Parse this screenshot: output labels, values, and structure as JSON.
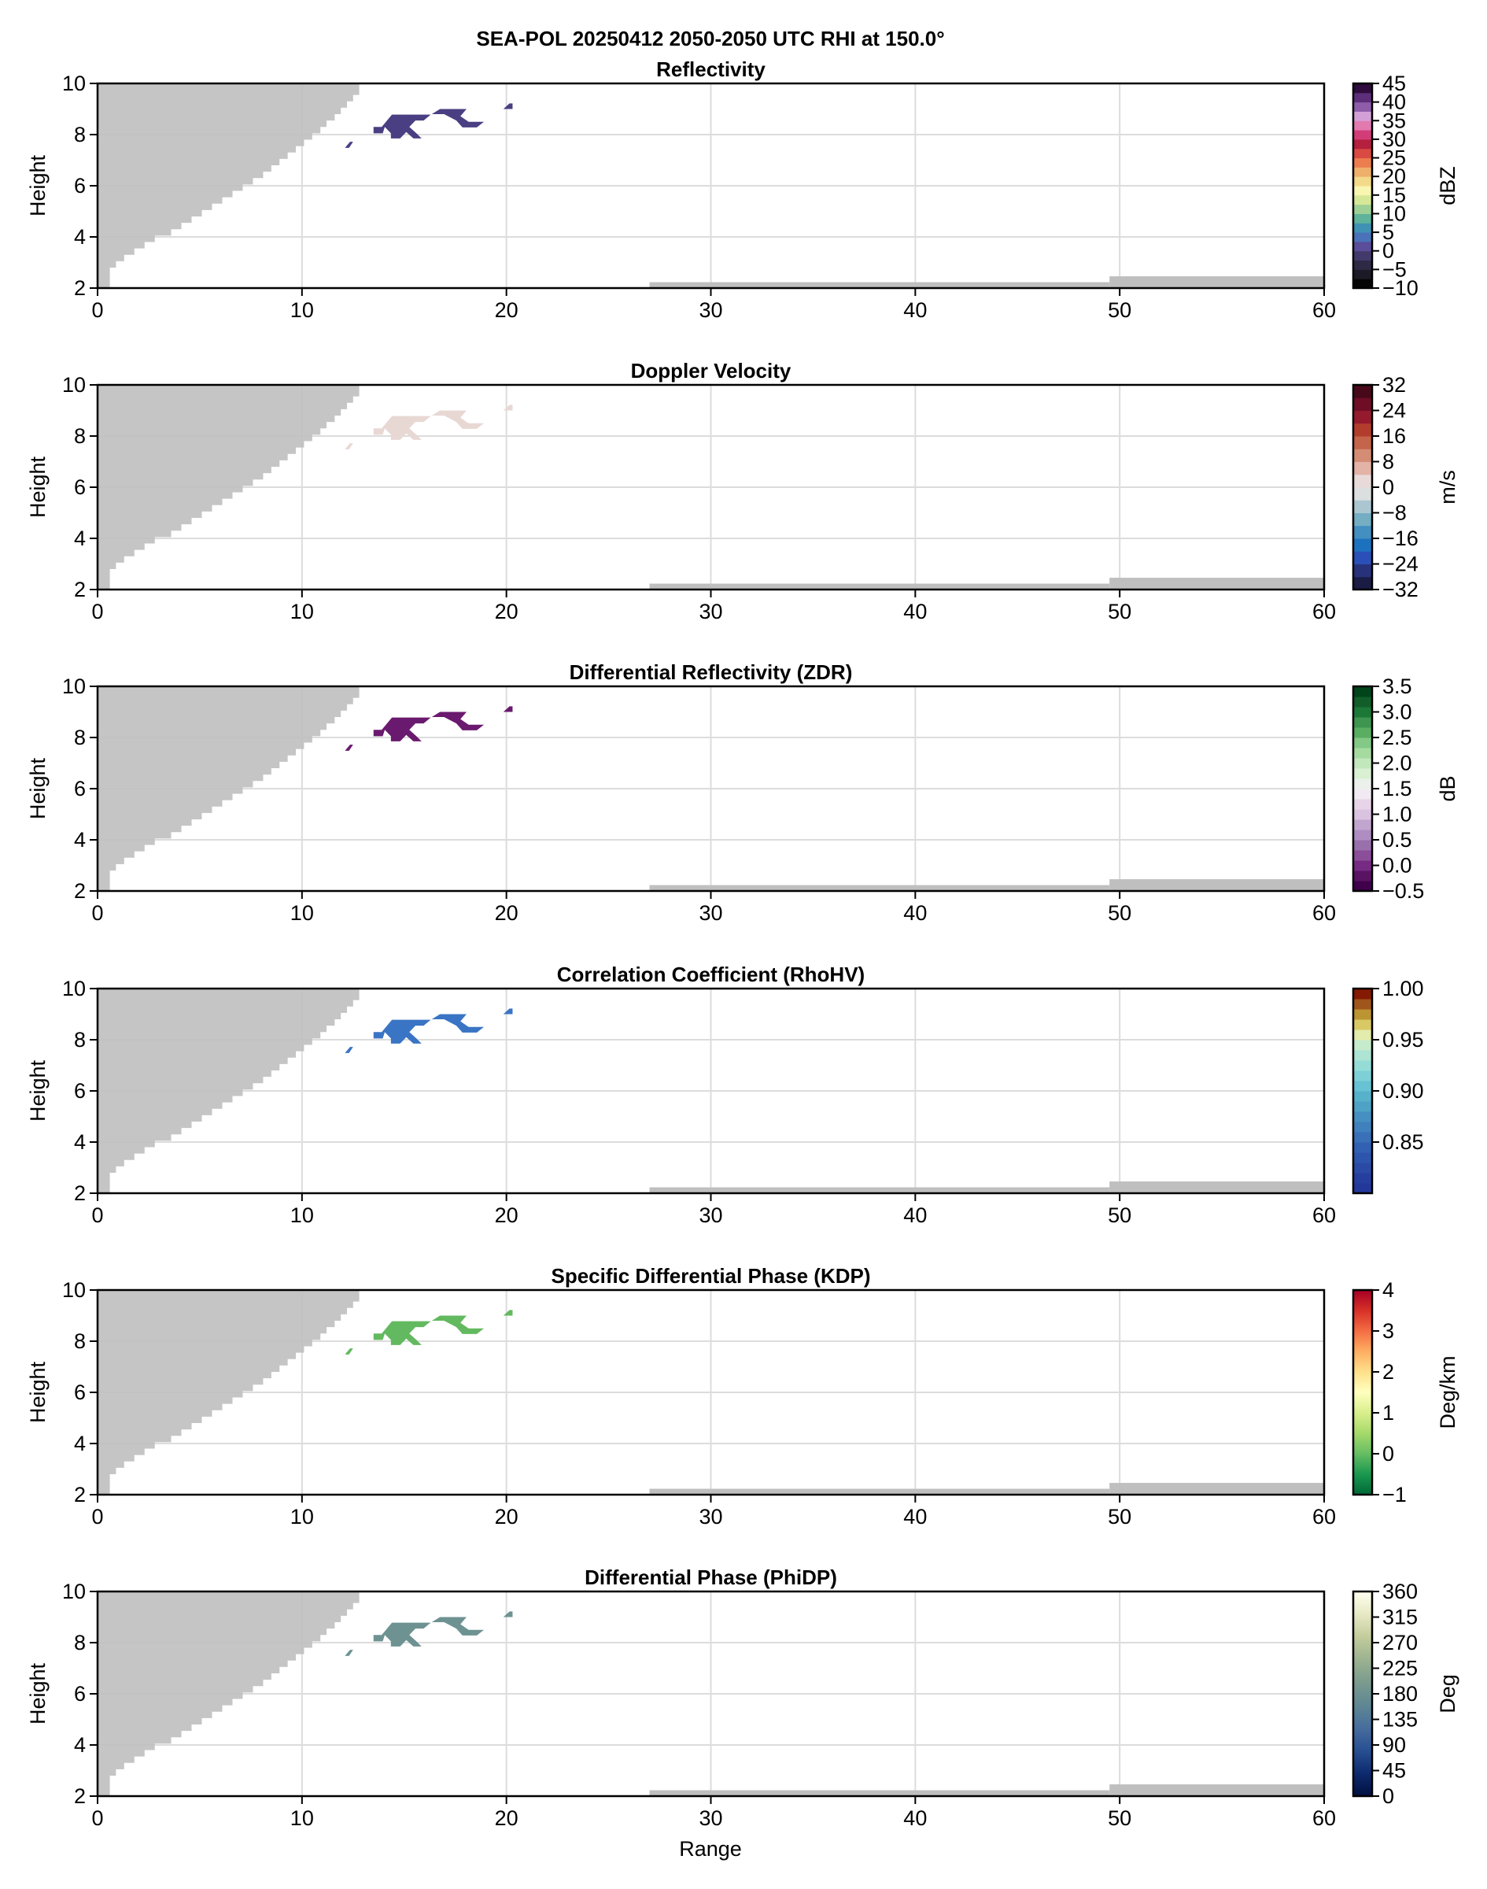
{
  "figure": {
    "suptitle": "SEA-POL 20250412 2050-2050 UTC RHI at 150.0°",
    "xlabel": "Range",
    "ylabel": "Height",
    "blocked_color": "#bfbfbf",
    "grid_color": "#dcdcdc"
  },
  "chart_data": [
    {
      "type": "heatmap",
      "title": "Reflectivity",
      "xlabel": "Range",
      "ylabel": "Height",
      "xlim": [
        0,
        60
      ],
      "ylim": [
        2,
        10
      ],
      "xticks": [
        "0",
        "10",
        "20",
        "30",
        "40",
        "50",
        "60"
      ],
      "yticks": [
        "2",
        "4",
        "6",
        "8",
        "10"
      ],
      "colorbar": {
        "label": "dBZ",
        "range": [
          -10,
          45
        ],
        "ticks": [
          "−10",
          "−5",
          "0",
          "5",
          "10",
          "15",
          "20",
          "25",
          "30",
          "35",
          "40",
          "45"
        ],
        "tick_values": [
          -10,
          -5,
          0,
          5,
          10,
          15,
          20,
          25,
          30,
          35,
          40,
          45
        ],
        "colors": [
          "#050505",
          "#1c1a26",
          "#2e2a45",
          "#433a6b",
          "#5a4d99",
          "#4a72b8",
          "#3f92b4",
          "#5fb39a",
          "#9ed095",
          "#d6e898",
          "#f8f6b0",
          "#f3d98a",
          "#eeb06a",
          "#ec7d4f",
          "#d94a42",
          "#b4203e",
          "#d23d78",
          "#e27ab0",
          "#d3a0d6",
          "#8e5ca8",
          "#5d2f7a",
          "#2f0c3d"
        ],
        "stepped": true
      },
      "echo_color": "#4a3f82",
      "echo_value_approx": 0
    },
    {
      "type": "heatmap",
      "title": "Doppler Velocity",
      "xlabel": "Range",
      "ylabel": "Height",
      "xlim": [
        0,
        60
      ],
      "ylim": [
        2,
        10
      ],
      "xticks": [
        "0",
        "10",
        "20",
        "30",
        "40",
        "50",
        "60"
      ],
      "yticks": [
        "2",
        "4",
        "6",
        "8",
        "10"
      ],
      "colorbar": {
        "label": "m/s",
        "range": [
          -32,
          32
        ],
        "ticks": [
          "−32",
          "−24",
          "−16",
          "−8",
          "0",
          "8",
          "16",
          "24",
          "32"
        ],
        "tick_values": [
          -32,
          -24,
          -16,
          -8,
          0,
          8,
          16,
          24,
          32
        ],
        "colors": [
          "#1b1c45",
          "#27327a",
          "#2a4fb8",
          "#1d72c0",
          "#428fc0",
          "#75aec3",
          "#abc6d0",
          "#dcdfe0",
          "#e8dad8",
          "#e2b3a6",
          "#d48c75",
          "#c4644a",
          "#b23d2c",
          "#951a2e",
          "#6f0d26",
          "#47091a"
        ],
        "stepped": true
      },
      "echo_color": "#e8d8d4",
      "echo_value_approx": 2
    },
    {
      "type": "heatmap",
      "title": "Differential Reflectivity (ZDR)",
      "xlabel": "Range",
      "ylabel": "Height",
      "xlim": [
        0,
        60
      ],
      "ylim": [
        2,
        10
      ],
      "xticks": [
        "0",
        "10",
        "20",
        "30",
        "40",
        "50",
        "60"
      ],
      "yticks": [
        "2",
        "4",
        "6",
        "8",
        "10"
      ],
      "colorbar": {
        "label": "dB",
        "range": [
          -0.5,
          3.5
        ],
        "ticks": [
          "−0.5",
          "0.0",
          "0.5",
          "1.0",
          "1.5",
          "2.0",
          "2.5",
          "3.0",
          "3.5"
        ],
        "tick_values": [
          -0.5,
          0,
          0.5,
          1.0,
          1.5,
          2.0,
          2.5,
          3.0,
          3.5
        ],
        "colors": [
          "#40004b",
          "#5a1263",
          "#762a83",
          "#8b4e99",
          "#9970ab",
          "#af8dc2",
          "#c2a5cf",
          "#dac3e0",
          "#e7d4e8",
          "#f1eaf2",
          "#ebf1ea",
          "#d9f0d3",
          "#c3e7bd",
          "#a6dba0",
          "#84c986",
          "#5aae61",
          "#3d9550",
          "#1b7837",
          "#115e2a",
          "#00441b"
        ],
        "stepped": true
      },
      "echo_color": "#6a1a6e",
      "echo_value_approx": -0.3
    },
    {
      "type": "heatmap",
      "title": "Correlation Coefficient (RhoHV)",
      "xlabel": "Range",
      "ylabel": "Height",
      "xlim": [
        0,
        60
      ],
      "ylim": [
        2,
        10
      ],
      "xticks": [
        "0",
        "10",
        "20",
        "30",
        "40",
        "50",
        "60"
      ],
      "yticks": [
        "2",
        "4",
        "6",
        "8",
        "10"
      ],
      "colorbar": {
        "label": "",
        "range": [
          0.8,
          1.0
        ],
        "ticks": [
          "0.85",
          "0.90",
          "0.95",
          "1.00"
        ],
        "tick_values": [
          0.85,
          0.9,
          0.95,
          1.0
        ],
        "colors": [
          "#23389a",
          "#263f9f",
          "#2a4aa6",
          "#2e55ad",
          "#3261b3",
          "#3970b8",
          "#3f80bd",
          "#4690c1",
          "#4ea2c6",
          "#56b2cb",
          "#67c2d3",
          "#7ed0d7",
          "#95dcd6",
          "#aee4d4",
          "#c6ebcc",
          "#e3ebad",
          "#d9c964",
          "#bc9431",
          "#a0551b",
          "#841a04"
        ],
        "stepped": true
      },
      "echo_color": "#3a74c4",
      "echo_value_approx": 0.84
    },
    {
      "type": "heatmap",
      "title": "Specific Differential Phase (KDP)",
      "xlabel": "Range",
      "ylabel": "Height",
      "xlim": [
        0,
        60
      ],
      "ylim": [
        2,
        10
      ],
      "xticks": [
        "0",
        "10",
        "20",
        "30",
        "40",
        "50",
        "60"
      ],
      "yticks": [
        "2",
        "4",
        "6",
        "8",
        "10"
      ],
      "colorbar": {
        "label": "Deg/km",
        "range": [
          -1,
          4
        ],
        "ticks": [
          "−1",
          "0",
          "1",
          "2",
          "3",
          "4"
        ],
        "tick_values": [
          -1,
          0,
          1,
          2,
          3,
          4
        ],
        "colors": [
          "#006837",
          "#1a9850",
          "#66bd63",
          "#a6d96a",
          "#d9ef8b",
          "#ffffbf",
          "#fee08b",
          "#fdae61",
          "#f46d43",
          "#d73027",
          "#a50026"
        ],
        "stepped": false
      },
      "echo_color": "#63b95f",
      "echo_value_approx": 0
    },
    {
      "type": "heatmap",
      "title": "Differential Phase (PhiDP)",
      "xlabel": "Range",
      "ylabel": "Height",
      "xlim": [
        0,
        60
      ],
      "ylim": [
        2,
        10
      ],
      "xticks": [
        "0",
        "10",
        "20",
        "30",
        "40",
        "50",
        "60"
      ],
      "yticks": [
        "2",
        "4",
        "6",
        "8",
        "10"
      ],
      "colorbar": {
        "label": "Deg",
        "range": [
          0,
          360
        ],
        "ticks": [
          "0",
          "45",
          "90",
          "135",
          "180",
          "225",
          "270",
          "315",
          "360"
        ],
        "tick_values": [
          0,
          45,
          90,
          135,
          180,
          225,
          270,
          315,
          360
        ],
        "colors": [
          "#001040",
          "#0e2a6e",
          "#284f92",
          "#476d9d",
          "#5f8793",
          "#7b9b8e",
          "#9cb290",
          "#c3cc9c",
          "#e7e9c4",
          "#fffff0"
        ],
        "stepped": false
      },
      "echo_color": "#6e9292",
      "echo_value_approx": 190
    }
  ],
  "shared_geometry_data": {
    "blocked_beam_edge": [
      [
        0.6,
        2.0
      ],
      [
        0.6,
        2.8
      ],
      [
        0.9,
        2.8
      ],
      [
        0.9,
        3.05
      ],
      [
        1.3,
        3.05
      ],
      [
        1.3,
        3.3
      ],
      [
        1.8,
        3.3
      ],
      [
        1.8,
        3.55
      ],
      [
        2.3,
        3.55
      ],
      [
        2.3,
        3.8
      ],
      [
        2.8,
        3.8
      ],
      [
        2.8,
        4.05
      ],
      [
        3.6,
        4.05
      ],
      [
        3.6,
        4.3
      ],
      [
        4.1,
        4.3
      ],
      [
        4.1,
        4.55
      ],
      [
        4.6,
        4.55
      ],
      [
        4.6,
        4.8
      ],
      [
        5.1,
        4.8
      ],
      [
        5.1,
        5.05
      ],
      [
        5.6,
        5.05
      ],
      [
        5.6,
        5.3
      ],
      [
        6.1,
        5.3
      ],
      [
        6.1,
        5.55
      ],
      [
        6.6,
        5.55
      ],
      [
        6.6,
        5.8
      ],
      [
        7.1,
        5.8
      ],
      [
        7.1,
        6.05
      ],
      [
        7.6,
        6.05
      ],
      [
        7.6,
        6.3
      ],
      [
        8.1,
        6.3
      ],
      [
        8.1,
        6.55
      ],
      [
        8.5,
        6.55
      ],
      [
        8.5,
        6.8
      ],
      [
        8.9,
        6.8
      ],
      [
        8.9,
        7.05
      ],
      [
        9.3,
        7.05
      ],
      [
        9.3,
        7.3
      ],
      [
        9.7,
        7.3
      ],
      [
        9.7,
        7.55
      ],
      [
        10.1,
        7.55
      ],
      [
        10.1,
        7.8
      ],
      [
        10.5,
        7.8
      ],
      [
        10.5,
        8.05
      ],
      [
        10.9,
        8.05
      ],
      [
        10.9,
        8.3
      ],
      [
        11.2,
        8.3
      ],
      [
        11.2,
        8.55
      ],
      [
        11.6,
        8.55
      ],
      [
        11.6,
        8.8
      ],
      [
        11.9,
        8.8
      ],
      [
        11.9,
        9.05
      ],
      [
        12.2,
        9.05
      ],
      [
        12.2,
        9.3
      ],
      [
        12.5,
        9.3
      ],
      [
        12.5,
        9.55
      ],
      [
        12.8,
        9.55
      ],
      [
        12.8,
        10.0
      ]
    ],
    "ground_clutter": [
      {
        "x0": 27.0,
        "x1": 49.5,
        "top": 2.23
      },
      {
        "x0": 49.5,
        "x1": 60.0,
        "top": 2.46
      }
    ],
    "echo_polygons": [
      [
        [
          13.5,
          8.05
        ],
        [
          13.5,
          8.3
        ],
        [
          13.9,
          8.3
        ],
        [
          14.4,
          8.78
        ],
        [
          16.3,
          8.78
        ],
        [
          15.95,
          8.55
        ],
        [
          15.55,
          8.55
        ],
        [
          15.25,
          8.3
        ],
        [
          15.6,
          8.05
        ],
        [
          15.85,
          7.85
        ],
        [
          15.45,
          7.85
        ],
        [
          15.1,
          8.1
        ],
        [
          14.8,
          7.85
        ],
        [
          14.35,
          7.85
        ],
        [
          14.35,
          8.05
        ],
        [
          14.05,
          8.3
        ],
        [
          13.95,
          8.05
        ]
      ],
      [
        [
          16.35,
          8.8
        ],
        [
          16.75,
          9.0
        ],
        [
          18.05,
          9.0
        ],
        [
          17.75,
          8.72
        ],
        [
          18.15,
          8.5
        ],
        [
          18.9,
          8.5
        ],
        [
          18.55,
          8.28
        ],
        [
          17.85,
          8.28
        ],
        [
          17.55,
          8.55
        ],
        [
          16.95,
          8.8
        ]
      ],
      [
        [
          19.85,
          9.0
        ],
        [
          20.15,
          9.22
        ],
        [
          20.3,
          9.22
        ],
        [
          20.3,
          9.0
        ]
      ],
      [
        [
          12.1,
          7.48
        ],
        [
          12.3,
          7.48
        ],
        [
          12.5,
          7.72
        ],
        [
          12.35,
          7.72
        ]
      ]
    ]
  }
}
